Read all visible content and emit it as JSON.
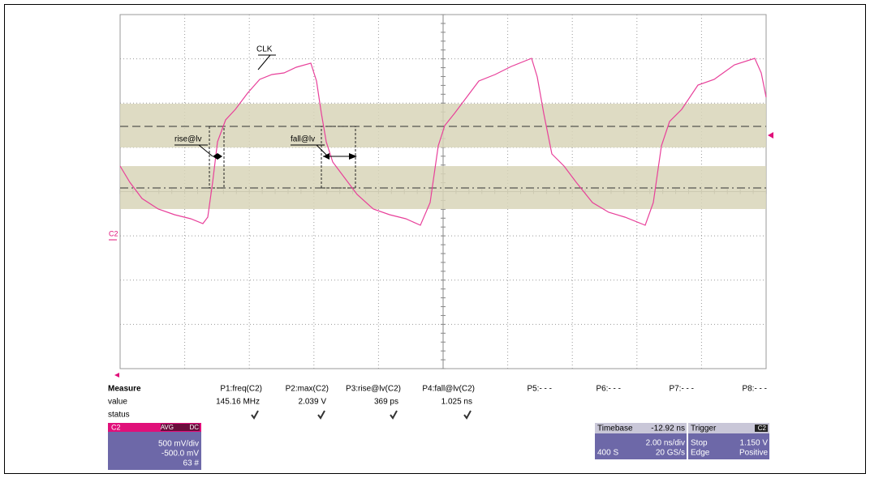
{
  "annotations": {
    "clk": "CLK",
    "rise": "rise@lv",
    "fall": "fall@lv",
    "channel_marker": "C2"
  },
  "measure": {
    "title": "Measure",
    "row_labels": [
      "value",
      "status"
    ],
    "params": [
      {
        "name": "P1:freq(C2)",
        "value": "145.16 MHz"
      },
      {
        "name": "P2:max(C2)",
        "value": "2.039 V"
      },
      {
        "name": "P3:rise@lv(C2)",
        "value": "369 ps"
      },
      {
        "name": "P4:fall@lv(C2)",
        "value": "1.025 ns"
      },
      {
        "name": "P5:- - -"
      },
      {
        "name": "P6:- - -"
      },
      {
        "name": "P7:- - -"
      },
      {
        "name": "P8:- - -"
      }
    ]
  },
  "channel_panel": {
    "name": "C2",
    "badges": [
      "AVG",
      "DC"
    ],
    "lines": [
      "500 mV/div",
      "-500.0 mV",
      "63 #"
    ]
  },
  "timebase_panel": {
    "title": "Timebase",
    "delay": "-12.92 ns",
    "scale": "2.00 ns/div",
    "samples": "400 S",
    "rate": "20 GS/s"
  },
  "trigger_panel": {
    "title": "Trigger",
    "source": "C2",
    "mode": "Stop",
    "level": "1.150 V",
    "type": "Edge",
    "slope": "Positive"
  }
}
